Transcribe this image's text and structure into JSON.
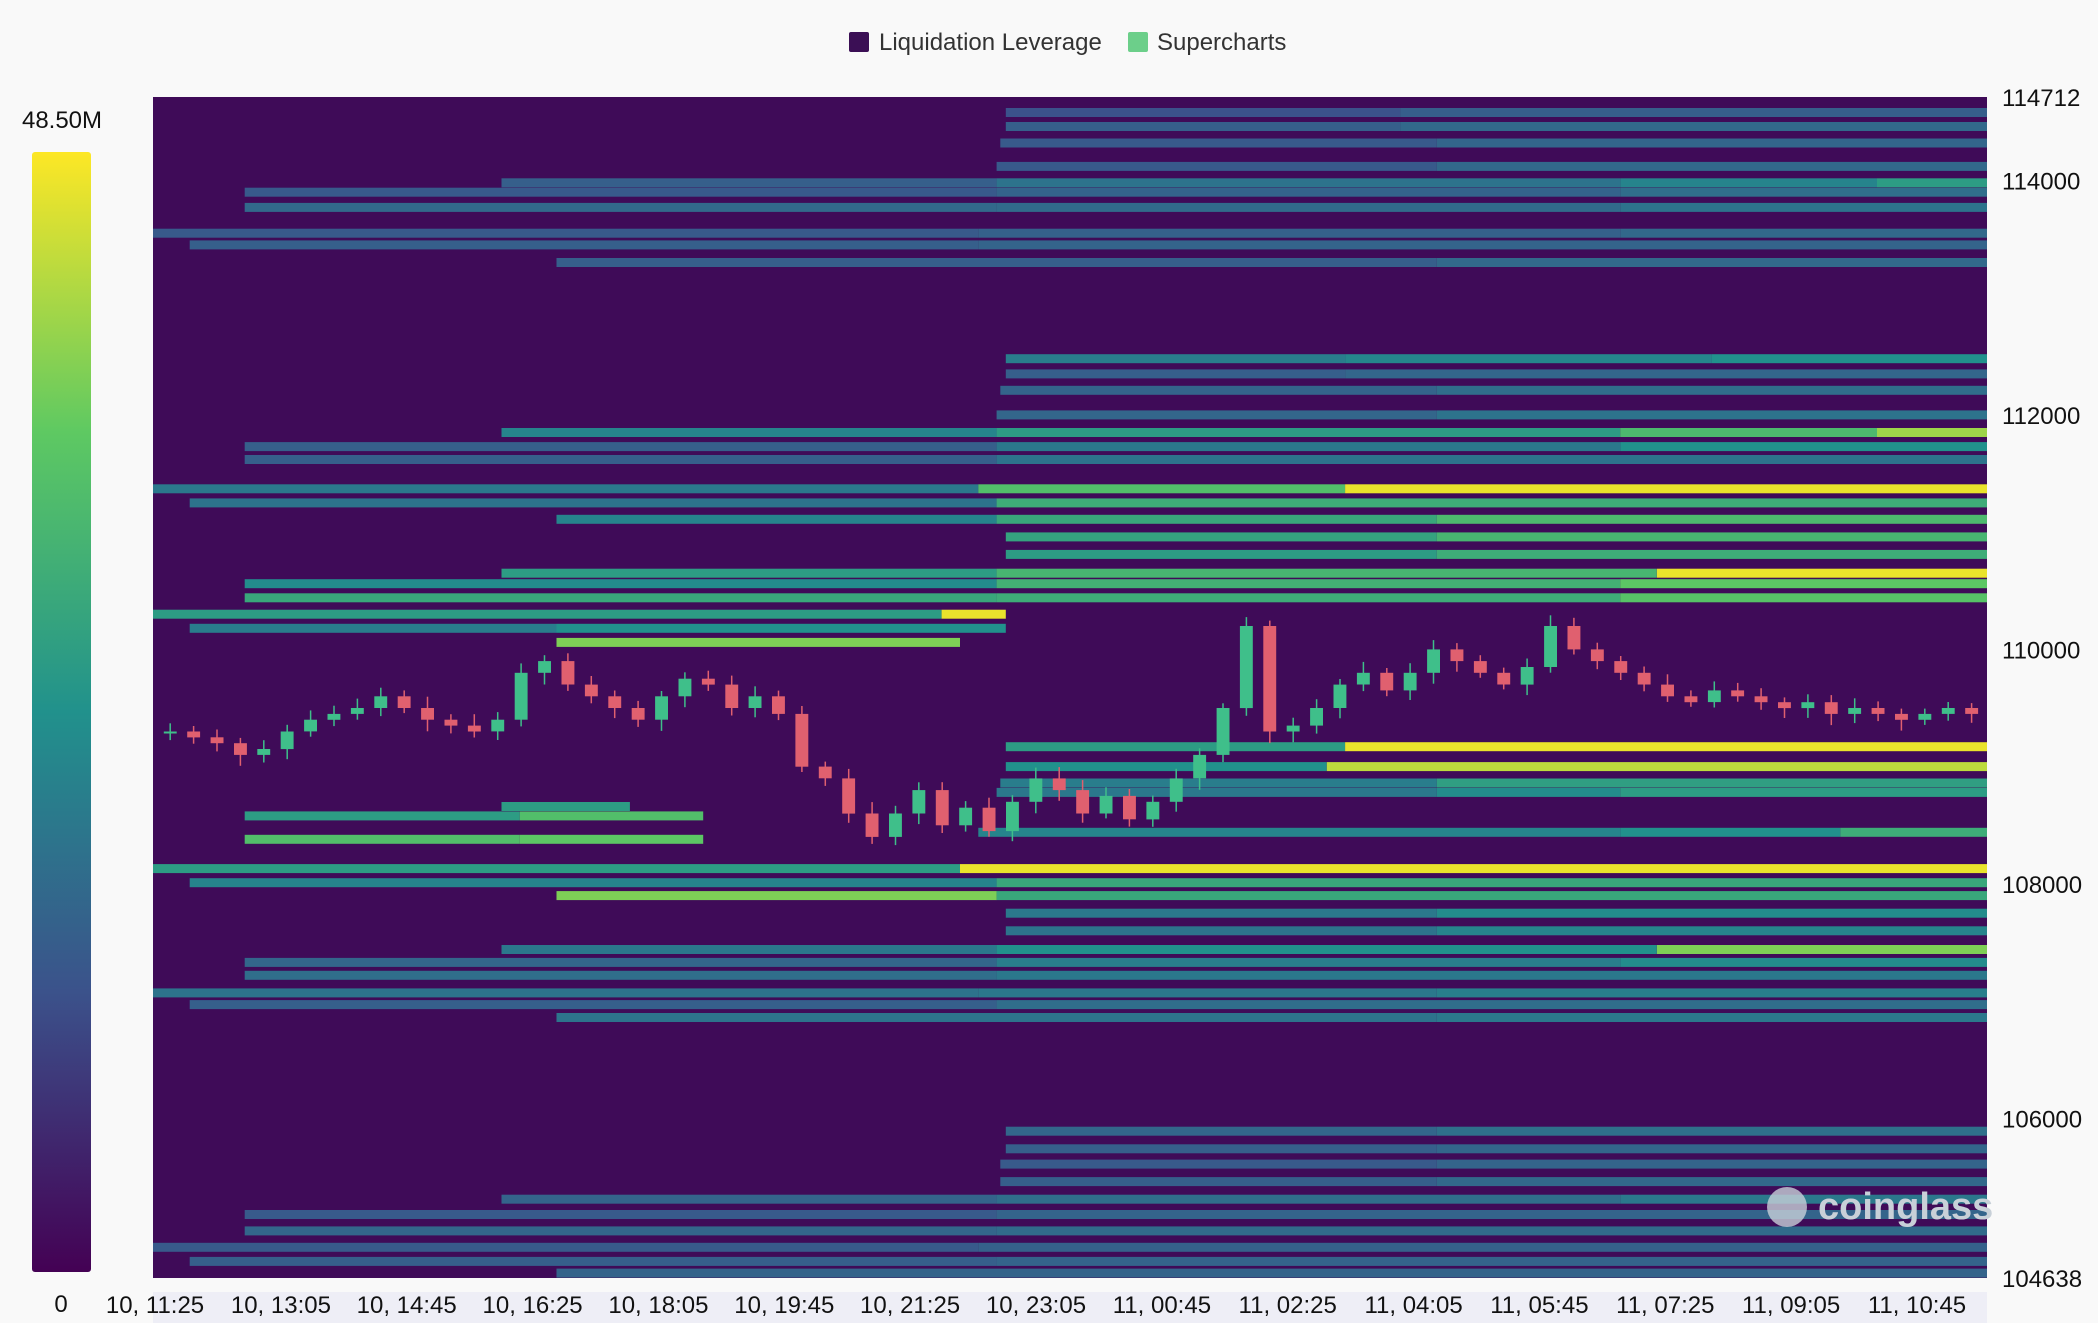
{
  "chart_data": {
    "type": "heatmap",
    "title": "",
    "legend": [
      {
        "label": "Liquidation Leverage",
        "color": "#3b0f55"
      },
      {
        "label": "Supercharts",
        "color": "#6ccf8a"
      }
    ],
    "colorbar": {
      "max_label": "48.50M",
      "min_label": "0",
      "min": 0,
      "max": 48.5,
      "stops": [
        "#440154",
        "#3b528b",
        "#21918c",
        "#5ec962",
        "#fde725"
      ]
    },
    "y_axis": {
      "min": 104638,
      "max": 114712,
      "ticks": [
        114712,
        114000,
        112000,
        110000,
        108000,
        106000,
        104638
      ]
    },
    "x_axis": {
      "start": "10, 11:25",
      "end": "11, 11:35",
      "ticks": [
        "10, 11:25",
        "10, 13:05",
        "10, 14:45",
        "10, 16:25",
        "10, 18:05",
        "10, 19:45",
        "10, 21:25",
        "10, 23:05",
        "11, 00:45",
        "11, 02:25",
        "11, 04:05",
        "11, 05:45",
        "11, 07:25",
        "11, 09:05",
        "11, 10:45"
      ]
    },
    "heatmap_bands": [
      {
        "price": 114580,
        "start": 0,
        "end": 1,
        "intensity": [
          [
            0.465,
            0.25
          ],
          [
            0.68,
            0.3
          ]
        ]
      },
      {
        "price": 114460,
        "start": 0.465,
        "end": 1,
        "intensity": [
          [
            0.465,
            0.3
          ],
          [
            0.68,
            0.34
          ]
        ]
      },
      {
        "price": 114320,
        "start": 0.462,
        "end": 1,
        "intensity": [
          [
            0.462,
            0.28
          ],
          [
            0.7,
            0.33
          ]
        ]
      },
      {
        "price": 114120,
        "start": 0.46,
        "end": 1,
        "intensity": [
          [
            0.46,
            0.28
          ],
          [
            0.7,
            0.34
          ]
        ]
      },
      {
        "price": 113980,
        "start": 0.19,
        "end": 1,
        "intensity": [
          [
            0.19,
            0.3
          ],
          [
            0.46,
            0.38
          ],
          [
            0.8,
            0.45
          ],
          [
            0.94,
            0.55
          ]
        ]
      },
      {
        "price": 113900,
        "start": 0.05,
        "end": 1,
        "intensity": [
          [
            0.05,
            0.28
          ],
          [
            0.46,
            0.32
          ],
          [
            0.8,
            0.36
          ]
        ]
      },
      {
        "price": 113770,
        "start": 0.05,
        "end": 1,
        "intensity": [
          [
            0.05,
            0.34
          ],
          [
            0.46,
            0.35
          ],
          [
            0.8,
            0.38
          ]
        ]
      },
      {
        "price": 113550,
        "start": 0,
        "end": 1,
        "intensity": [
          [
            0,
            0.28
          ],
          [
            0.45,
            0.31
          ],
          [
            0.8,
            0.34
          ]
        ]
      },
      {
        "price": 113450,
        "start": 0.02,
        "end": 1,
        "intensity": [
          [
            0.02,
            0.3
          ],
          [
            0.45,
            0.32
          ]
        ]
      },
      {
        "price": 113300,
        "start": 0.22,
        "end": 1,
        "intensity": [
          [
            0.22,
            0.3
          ],
          [
            0.7,
            0.34
          ]
        ]
      },
      {
        "price": 112480,
        "start": 0.465,
        "end": 1,
        "intensity": [
          [
            0.465,
            0.42
          ],
          [
            0.65,
            0.46
          ],
          [
            0.85,
            0.5
          ]
        ]
      },
      {
        "price": 112350,
        "start": 0.465,
        "end": 1,
        "intensity": [
          [
            0.465,
            0.3
          ],
          [
            0.65,
            0.33
          ]
        ]
      },
      {
        "price": 112210,
        "start": 0.462,
        "end": 1,
        "intensity": [
          [
            0.462,
            0.32
          ],
          [
            0.7,
            0.36
          ]
        ]
      },
      {
        "price": 112000,
        "start": 0.46,
        "end": 1,
        "intensity": [
          [
            0.46,
            0.33
          ],
          [
            0.7,
            0.38
          ]
        ]
      },
      {
        "price": 111850,
        "start": 0.19,
        "end": 1,
        "intensity": [
          [
            0.19,
            0.45
          ],
          [
            0.46,
            0.55
          ],
          [
            0.8,
            0.68
          ],
          [
            0.94,
            0.85
          ]
        ]
      },
      {
        "price": 111730,
        "start": 0.05,
        "end": 1,
        "intensity": [
          [
            0.05,
            0.3
          ],
          [
            0.46,
            0.4
          ],
          [
            0.8,
            0.5
          ]
        ]
      },
      {
        "price": 111620,
        "start": 0.05,
        "end": 1,
        "intensity": [
          [
            0.05,
            0.3
          ],
          [
            0.46,
            0.38
          ]
        ]
      },
      {
        "price": 111370,
        "start": 0,
        "end": 1,
        "intensity": [
          [
            0,
            0.4
          ],
          [
            0.45,
            0.7
          ],
          [
            0.65,
            0.97
          ]
        ]
      },
      {
        "price": 111250,
        "start": 0.02,
        "end": 1,
        "intensity": [
          [
            0.02,
            0.38
          ],
          [
            0.46,
            0.62
          ]
        ]
      },
      {
        "price": 111110,
        "start": 0.22,
        "end": 1,
        "intensity": [
          [
            0.22,
            0.45
          ],
          [
            0.46,
            0.6
          ],
          [
            0.7,
            0.68
          ]
        ]
      },
      {
        "price": 110960,
        "start": 0.465,
        "end": 1,
        "intensity": [
          [
            0.465,
            0.58
          ],
          [
            0.7,
            0.66
          ]
        ]
      },
      {
        "price": 110810,
        "start": 0.465,
        "end": 1,
        "intensity": [
          [
            0.465,
            0.55
          ],
          [
            0.7,
            0.62
          ]
        ]
      },
      {
        "price": 110650,
        "start": 0.19,
        "end": 1,
        "intensity": [
          [
            0.19,
            0.55
          ],
          [
            0.46,
            0.66
          ],
          [
            0.82,
            0.97
          ]
        ]
      },
      {
        "price": 110560,
        "start": 0.05,
        "end": 1,
        "intensity": [
          [
            0.05,
            0.48
          ],
          [
            0.46,
            0.64
          ],
          [
            0.8,
            0.74
          ]
        ]
      },
      {
        "price": 110440,
        "start": 0.05,
        "end": 1,
        "intensity": [
          [
            0.05,
            0.6
          ],
          [
            0.46,
            0.62
          ],
          [
            0.8,
            0.72
          ]
        ]
      },
      {
        "price": 110300,
        "start": 0,
        "end": 0.465,
        "intensity": [
          [
            0,
            0.55
          ],
          [
            0.43,
            0.97
          ]
        ]
      },
      {
        "price": 110180,
        "start": 0.02,
        "end": 0.465,
        "intensity": [
          [
            0.02,
            0.42
          ],
          [
            0.22,
            0.5
          ]
        ]
      },
      {
        "price": 110060,
        "start": 0.22,
        "end": 0.44,
        "intensity": [
          [
            0.22,
            0.8
          ]
        ]
      },
      {
        "price": 109170,
        "start": 0.465,
        "end": 1,
        "intensity": [
          [
            0.465,
            0.55
          ],
          [
            0.65,
            0.97
          ]
        ]
      },
      {
        "price": 109000,
        "start": 0.465,
        "end": 1,
        "intensity": [
          [
            0.465,
            0.5
          ],
          [
            0.64,
            0.9
          ]
        ]
      },
      {
        "price": 108860,
        "start": 0.462,
        "end": 1,
        "intensity": [
          [
            0.462,
            0.42
          ],
          [
            0.7,
            0.56
          ]
        ]
      },
      {
        "price": 108780,
        "start": 0.46,
        "end": 1,
        "intensity": [
          [
            0.46,
            0.4
          ],
          [
            0.7,
            0.48
          ],
          [
            0.8,
            0.55
          ]
        ]
      },
      {
        "price": 108660,
        "start": 0.19,
        "end": 0.26,
        "intensity": [
          [
            0.19,
            0.55
          ]
        ]
      },
      {
        "price": 108580,
        "start": 0.05,
        "end": 0.3,
        "intensity": [
          [
            0.05,
            0.55
          ],
          [
            0.2,
            0.7
          ]
        ]
      },
      {
        "price": 108440,
        "start": 0.45,
        "end": 1,
        "intensity": [
          [
            0.45,
            0.45
          ],
          [
            0.8,
            0.5
          ],
          [
            0.92,
            0.62
          ]
        ]
      },
      {
        "price": 108380,
        "start": 0.05,
        "end": 0.3,
        "intensity": [
          [
            0.05,
            0.7
          ],
          [
            0.2,
            0.74
          ]
        ]
      },
      {
        "price": 108130,
        "start": 0,
        "end": 1,
        "intensity": [
          [
            0,
            0.55
          ],
          [
            0.44,
            0.97
          ]
        ]
      },
      {
        "price": 108010,
        "start": 0.02,
        "end": 1,
        "intensity": [
          [
            0.02,
            0.45
          ],
          [
            0.46,
            0.6
          ]
        ]
      },
      {
        "price": 107900,
        "start": 0.22,
        "end": 1,
        "intensity": [
          [
            0.22,
            0.8
          ],
          [
            0.46,
            0.6
          ]
        ]
      },
      {
        "price": 107750,
        "start": 0.465,
        "end": 1,
        "intensity": [
          [
            0.465,
            0.4
          ],
          [
            0.7,
            0.48
          ]
        ]
      },
      {
        "price": 107600,
        "start": 0.465,
        "end": 1,
        "intensity": [
          [
            0.465,
            0.38
          ],
          [
            0.7,
            0.45
          ]
        ]
      },
      {
        "price": 107440,
        "start": 0.19,
        "end": 1,
        "intensity": [
          [
            0.19,
            0.4
          ],
          [
            0.46,
            0.5
          ],
          [
            0.82,
            0.8
          ]
        ]
      },
      {
        "price": 107330,
        "start": 0.05,
        "end": 1,
        "intensity": [
          [
            0.05,
            0.33
          ],
          [
            0.46,
            0.42
          ],
          [
            0.8,
            0.48
          ]
        ]
      },
      {
        "price": 107220,
        "start": 0.05,
        "end": 1,
        "intensity": [
          [
            0.05,
            0.36
          ],
          [
            0.46,
            0.4
          ]
        ]
      },
      {
        "price": 107070,
        "start": 0,
        "end": 1,
        "intensity": [
          [
            0,
            0.38
          ],
          [
            0.45,
            0.4
          ],
          [
            0.7,
            0.43
          ]
        ]
      },
      {
        "price": 106970,
        "start": 0.02,
        "end": 1,
        "intensity": [
          [
            0.02,
            0.3
          ],
          [
            0.46,
            0.36
          ]
        ]
      },
      {
        "price": 106860,
        "start": 0.22,
        "end": 1,
        "intensity": [
          [
            0.22,
            0.38
          ],
          [
            0.7,
            0.4
          ]
        ]
      },
      {
        "price": 105890,
        "start": 0.465,
        "end": 1,
        "intensity": [
          [
            0.465,
            0.33
          ],
          [
            0.7,
            0.37
          ]
        ]
      },
      {
        "price": 105740,
        "start": 0.465,
        "end": 1,
        "intensity": [
          [
            0.465,
            0.3
          ],
          [
            0.7,
            0.33
          ]
        ]
      },
      {
        "price": 105610,
        "start": 0.462,
        "end": 1,
        "intensity": [
          [
            0.462,
            0.28
          ],
          [
            0.7,
            0.32
          ]
        ]
      },
      {
        "price": 105460,
        "start": 0.462,
        "end": 1,
        "intensity": [
          [
            0.462,
            0.3
          ],
          [
            0.7,
            0.34
          ]
        ]
      },
      {
        "price": 105310,
        "start": 0.19,
        "end": 1,
        "intensity": [
          [
            0.19,
            0.32
          ],
          [
            0.46,
            0.36
          ],
          [
            0.8,
            0.4
          ]
        ]
      },
      {
        "price": 105180,
        "start": 0.05,
        "end": 1,
        "intensity": [
          [
            0.05,
            0.28
          ],
          [
            0.46,
            0.32
          ]
        ]
      },
      {
        "price": 105040,
        "start": 0.05,
        "end": 1,
        "intensity": [
          [
            0.05,
            0.33
          ],
          [
            0.46,
            0.35
          ]
        ]
      },
      {
        "price": 104900,
        "start": 0,
        "end": 1,
        "intensity": [
          [
            0,
            0.28
          ],
          [
            0.45,
            0.31
          ]
        ]
      },
      {
        "price": 104780,
        "start": 0.02,
        "end": 1,
        "intensity": [
          [
            0.02,
            0.3
          ],
          [
            0.46,
            0.32
          ]
        ]
      },
      {
        "price": 104680,
        "start": 0.22,
        "end": 1,
        "intensity": [
          [
            0.22,
            0.32
          ]
        ]
      }
    ],
    "price_series": {
      "name": "",
      "close": [
        109300,
        109250,
        109200,
        109100,
        109150,
        109300,
        109400,
        109450,
        109500,
        109600,
        109500,
        109400,
        109350,
        109300,
        109400,
        109800,
        109900,
        109700,
        109600,
        109500,
        109400,
        109600,
        109750,
        109700,
        109500,
        109600,
        109450,
        109000,
        108900,
        108600,
        108400,
        108600,
        108800,
        108500,
        108650,
        108450,
        108700,
        108900,
        108800,
        108600,
        108750,
        108550,
        108700,
        108900,
        109100,
        109500,
        110200,
        109300,
        109350,
        109500,
        109700,
        109800,
        109650,
        109800,
        110000,
        109900,
        109800,
        109700,
        109850,
        110200,
        110000,
        109900,
        109800,
        109700,
        109600,
        109550,
        109650,
        109600,
        109550,
        109500,
        109550,
        109450,
        109500,
        109450,
        109400,
        109450,
        109500,
        109450
      ]
    }
  }
}
